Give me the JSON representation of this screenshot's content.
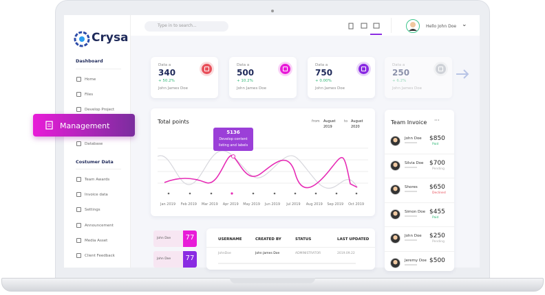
{
  "logo": "Crysa",
  "search_placeholder": "Type in to search...",
  "user": {
    "greeting": "Hello John Doe"
  },
  "sidebar": {
    "section1": "Dashboard",
    "items1": [
      "Home",
      "Files",
      "Develop Project",
      "Database"
    ],
    "active": "Management",
    "section2": "Costumer Data",
    "items2": [
      "Team Awards",
      "Invoice data",
      "Settings",
      "Announcement",
      "Media Asset",
      "Client Feedback"
    ]
  },
  "stat_cards": [
    {
      "label": "Data a",
      "value": 340,
      "change": "+ 50.2%",
      "owner": "John James Doe"
    },
    {
      "label": "Data a",
      "value": 500,
      "change": "+ 10.2%",
      "owner": "John James Doe"
    },
    {
      "label": "Data a",
      "value": 750,
      "change": "+ 0.00%",
      "owner": "John James Doe"
    },
    {
      "label": "Data a",
      "value": 250,
      "change": "+ 6.2%",
      "owner": "John James Doe"
    }
  ],
  "chart": {
    "title": "Total points",
    "from_label": "from",
    "from_date": "August 2019",
    "to_label": "to",
    "to_date": "August 2020",
    "tooltip_value": 5136,
    "tooltip_text": "Develop content listing and labels",
    "x_labels": [
      "Jan 2019",
      "Feb 2019",
      "Mar 2019",
      "Apr 2019",
      "May 2019",
      "Jun 2019",
      "Jul 2019",
      "Aug 2019",
      "Sep 2019",
      "Oct 2019"
    ]
  },
  "invoice": {
    "title": "Team Invoice",
    "rows": [
      {
        "name": "John Doe",
        "amount": "$850",
        "status": "Paid"
      },
      {
        "name": "Silvia Doe",
        "amount": "$700",
        "status": "Pending"
      },
      {
        "name": "Shores",
        "amount": "$650",
        "status": "Declined"
      },
      {
        "name": "Simon Doe",
        "amount": "$455",
        "status": "Paid"
      },
      {
        "name": "John Doe",
        "amount": "$250",
        "status": "Pending"
      },
      {
        "name": "Jeremy Doe",
        "amount": "$500"
      }
    ]
  },
  "mini_cards": [
    {
      "name": "John Doe",
      "value": 77
    },
    {
      "name": "John Doe",
      "value": 77
    }
  ],
  "table": {
    "headers": [
      "USERNAME",
      "CREATED BY",
      "STATUS",
      "LAST UPDATED"
    ],
    "rows": [
      [
        "JohnDoe",
        "John James Doe",
        "ADMINISTRATOR",
        "2019.09.22"
      ]
    ]
  }
}
